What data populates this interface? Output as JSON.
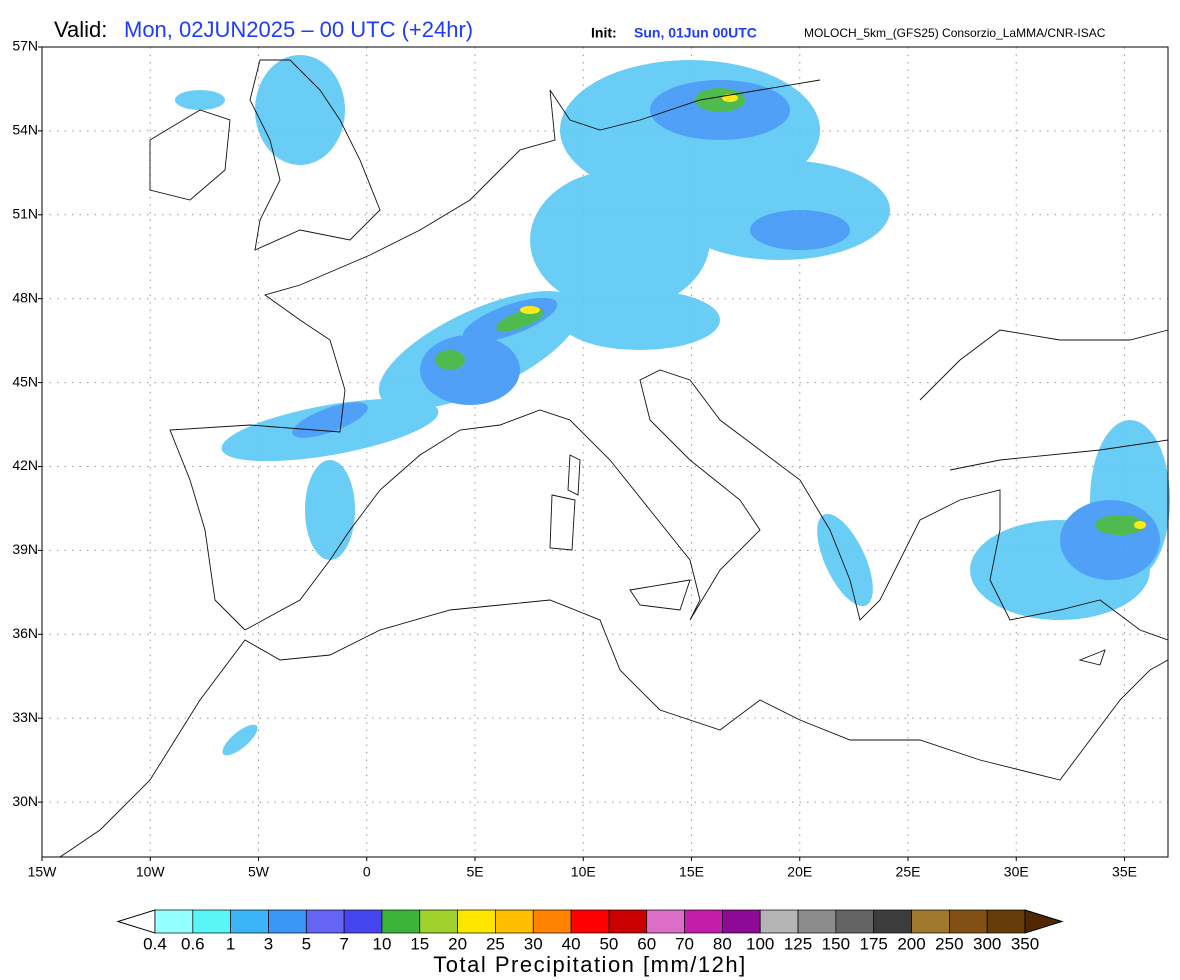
{
  "header": {
    "valid_label": "Valid:",
    "valid_value": "Mon, 02JUN2025 – 00 UTC (+24hr)",
    "init_label": "Init:",
    "init_value": "Sun, 01Jun 00UTC",
    "model": "MOLOCH_5km_(GFS25) Consorzio_LaMMA/CNR-ISAC"
  },
  "map": {
    "lat_labels": [
      "57N",
      "54N",
      "51N",
      "48N",
      "45N",
      "42N",
      "39N",
      "36N",
      "33N",
      "30N"
    ],
    "lon_labels": [
      "15W",
      "10W",
      "5W",
      "0",
      "5E",
      "10E",
      "15E",
      "20E",
      "25E",
      "30E",
      "35E"
    ]
  },
  "legend": {
    "labels": [
      "0.4",
      "0.6",
      "1",
      "3",
      "5",
      "7",
      "10",
      "15",
      "20",
      "25",
      "30",
      "40",
      "50",
      "60",
      "70",
      "80",
      "100",
      "125",
      "150",
      "175",
      "200",
      "250",
      "300",
      "350"
    ],
    "colors": [
      "#96ffff",
      "#5af5f5",
      "#3cb4f8",
      "#3c96f5",
      "#6464f5",
      "#4646f0",
      "#3cb43c",
      "#a0d22d",
      "#ffe600",
      "#ffbe00",
      "#ff8200",
      "#ff0000",
      "#c80000",
      "#dc6ec8",
      "#c31eaa",
      "#8c0a96",
      "#b4b4b4",
      "#8c8c8c",
      "#646464",
      "#3c3c3c",
      "#a0782d",
      "#825014",
      "#643c0a"
    ],
    "title": "Total Precipitation [mm/12h]"
  }
}
